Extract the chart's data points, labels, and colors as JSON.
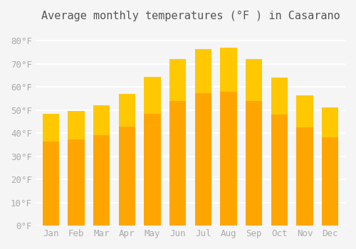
{
  "title": "Average monthly temperatures (°F ) in Casarano",
  "months": [
    "Jan",
    "Feb",
    "Mar",
    "Apr",
    "May",
    "Jun",
    "Jul",
    "Aug",
    "Sep",
    "Oct",
    "Nov",
    "Dec"
  ],
  "values": [
    48.5,
    49.5,
    52.0,
    57.0,
    64.5,
    72.0,
    76.5,
    77.0,
    72.0,
    64.0,
    56.5,
    51.0
  ],
  "bar_color_main": "#FFA500",
  "bar_color_gradient_top": "#FFD700",
  "ylim": [
    0,
    85
  ],
  "yticks": [
    0,
    10,
    20,
    30,
    40,
    50,
    60,
    70,
    80
  ],
  "ytick_labels": [
    "0°F",
    "10°F",
    "20°F",
    "30°F",
    "40°F",
    "50°F",
    "60°F",
    "70°F",
    "80°F"
  ],
  "background_color": "#f5f5f5",
  "grid_color": "#ffffff",
  "title_fontsize": 11,
  "tick_fontsize": 9,
  "bar_edge_color": "none"
}
